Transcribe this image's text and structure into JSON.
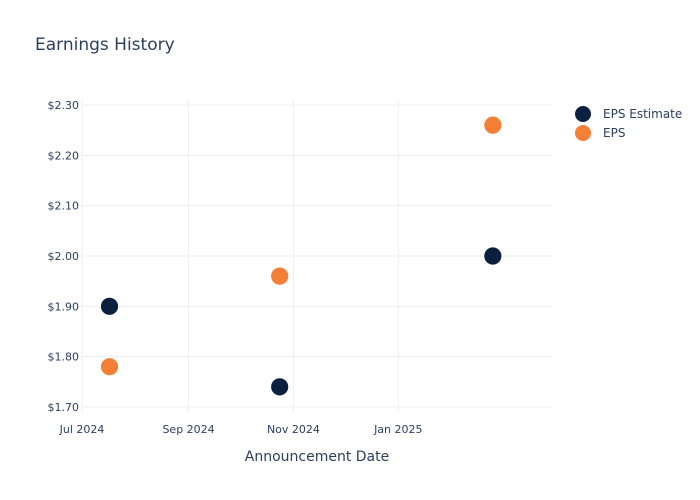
{
  "chart_data": {
    "type": "scatter",
    "title": "Earnings History",
    "xlabel": "Announcement Date",
    "ylabel": "",
    "x_ticks": [
      {
        "date": "2024-07-01",
        "label": "Jul 2024"
      },
      {
        "date": "2024-09-01",
        "label": "Sep 2024"
      },
      {
        "date": "2024-11-01",
        "label": "Nov 2024"
      },
      {
        "date": "2025-01-01",
        "label": "Jan 2025"
      }
    ],
    "xlim": [
      "2024-07-01",
      "2025-04-01"
    ],
    "y_ticks": [
      {
        "value": 1.7,
        "label": "$1.70"
      },
      {
        "value": 1.8,
        "label": "$1.80"
      },
      {
        "value": 1.9,
        "label": "$1.90"
      },
      {
        "value": 2.0,
        "label": "$2.00"
      },
      {
        "value": 2.1,
        "label": "$2.10"
      },
      {
        "value": 2.2,
        "label": "$2.20"
      },
      {
        "value": 2.3,
        "label": "$2.30"
      }
    ],
    "ylim": [
      1.69,
      2.31
    ],
    "grid": true,
    "legend_position": "top-right",
    "series": [
      {
        "name": "EPS Estimate",
        "color": "#0b1f3f",
        "points": [
          {
            "x": "2024-07-17",
            "y": 1.9
          },
          {
            "x": "2024-10-24",
            "y": 1.74
          },
          {
            "x": "2025-02-25",
            "y": 2.0
          }
        ]
      },
      {
        "name": "EPS",
        "color": "#f47f36",
        "points": [
          {
            "x": "2024-07-17",
            "y": 1.78
          },
          {
            "x": "2024-10-24",
            "y": 1.96
          },
          {
            "x": "2025-02-25",
            "y": 2.26
          }
        ]
      }
    ]
  }
}
